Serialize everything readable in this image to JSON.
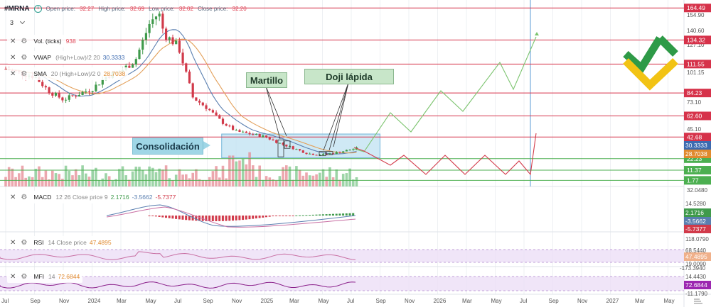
{
  "header": {
    "ticker": "#MRNA",
    "ohlc": [
      {
        "label": "Open price:",
        "value": "32.27"
      },
      {
        "label": "High price:",
        "value": "32.69"
      },
      {
        "label": "Low price:",
        "value": "32.02"
      },
      {
        "label": "Close price:",
        "value": "32.20"
      }
    ],
    "interval": "3"
  },
  "legends": {
    "vol": {
      "name": "Vol. (ticks)",
      "params": "",
      "values": [
        "938"
      ]
    },
    "vwap": {
      "name": "VWAP",
      "params": "(High+Low)/2 20",
      "values": [
        "30.3333"
      ]
    },
    "sma": {
      "name": "SMA",
      "params": "20 (High+Low)/2 0",
      "values": [
        "28.7038"
      ]
    },
    "macd": {
      "name": "MACD",
      "params": "12 26 Close price 9",
      "values": [
        "2.1716",
        "-3.5662",
        "-5.7377"
      ]
    },
    "rsi": {
      "name": "RSI",
      "params": "14 Close price",
      "values": [
        "47.4895"
      ]
    },
    "mfi": {
      "name": "MFI",
      "params": "14",
      "values": [
        "72.6844"
      ]
    }
  },
  "annotations": {
    "martillo": "Martillo",
    "doji": "Doji lápida",
    "consolidacion": "Consolidación"
  },
  "price_axis": {
    "ticks": [
      "154.90",
      "140.60",
      "127.10",
      "101.15",
      "73.10",
      "45.10",
      "32.0480"
    ],
    "hline_labels": [
      "164.49",
      "134.32",
      "111.55",
      "84.23",
      "62.60",
      "42.68",
      "22.23",
      "11.37",
      "1.77"
    ],
    "value_tags": [
      "30.3333",
      "28.7038"
    ]
  },
  "macd_axis": {
    "ticks": [
      "14.5280",
      "-11.4420"
    ],
    "tags": [
      "2.1716",
      "-3.5662",
      "-5.7377"
    ]
  },
  "rsi_axis": {
    "ticks": [
      "118.0790",
      "68.5440",
      "19.0090",
      "-173.3940"
    ],
    "tag": "47.4895"
  },
  "mfi_axis": {
    "ticks": [
      "14.4430",
      "-11.1790"
    ],
    "tag": "72.6844"
  },
  "time_axis": [
    "Jul",
    "Sep",
    "Nov",
    "2024",
    "Mar",
    "May",
    "Jul",
    "Sep",
    "Nov",
    "2025",
    "Mar",
    "May",
    "Jul",
    "Sep",
    "Nov",
    "2026",
    "Mar",
    "May",
    "Jul",
    "Sep",
    "Nov",
    "2027",
    "Mar",
    "May"
  ],
  "colors": {
    "up": "#3f9a4b",
    "down": "#d13a4a",
    "vwap": "#5a7fb0",
    "sma": "#e3a05a",
    "red_level": "#d6324a",
    "green_level": "#4caf50",
    "zone": "#bfe1f2",
    "rsi": "#c86fa3",
    "mfi": "#8a1f8a"
  },
  "chart_data": {
    "type": "candlestick",
    "price_series": [
      [
        "2023-07-01",
        107
      ],
      [
        "2023-08-01",
        103
      ],
      [
        "2023-09-01",
        100
      ],
      [
        "2023-10-01",
        86
      ],
      [
        "2023-11-01",
        78
      ],
      [
        "2024-01-01",
        88
      ],
      [
        "2024-02-01",
        100
      ],
      [
        "2024-03-01",
        105
      ],
      [
        "2024-04-01",
        115
      ],
      [
        "2024-05-01",
        150
      ],
      [
        "2024-05-20",
        160
      ],
      [
        "2024-06-01",
        140
      ],
      [
        "2024-07-01",
        128
      ],
      [
        "2024-08-01",
        80
      ],
      [
        "2024-09-01",
        70
      ],
      [
        "2024-10-01",
        57
      ],
      [
        "2024-11-01",
        48
      ],
      [
        "2025-01-01",
        43
      ],
      [
        "2025-02-01",
        37
      ],
      [
        "2025-03-01",
        32
      ],
      [
        "2025-04-01",
        27
      ],
      [
        "2025-05-01",
        26
      ],
      [
        "2025-06-01",
        28
      ],
      [
        "2025-07-01",
        31
      ],
      [
        "2025-07-15",
        32.2
      ]
    ],
    "levels_red": [
      164.49,
      134.32,
      111.55,
      84.23,
      62.6,
      42.68
    ],
    "levels_green": [
      22.23,
      11.37,
      1.77
    ],
    "consolidation_zone": {
      "start": "2024-10-01",
      "end": "2025-09-01",
      "high": 45.5,
      "low": 23
    }
  }
}
